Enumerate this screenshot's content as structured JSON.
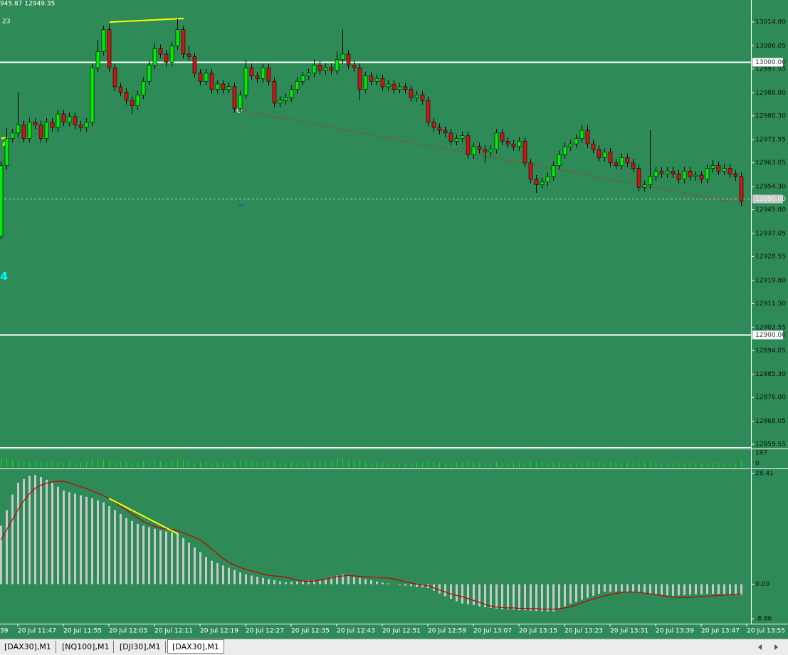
{
  "header": {
    "prices": "945.87 12949.35",
    "label": "23",
    "marker_a": "7",
    "marker_b": "4"
  },
  "chart_data": [
    {
      "type": "candlestick",
      "colors": {
        "up": "#00ee00",
        "down": "#d01414",
        "wick": "#000000"
      },
      "open": [
        12936,
        12962,
        12972,
        12974,
        12977,
        12972,
        12978,
        12977,
        12972,
        12978,
        12976,
        12981,
        12978,
        12980,
        12977,
        12976,
        12978,
        12998,
        13004,
        13012,
        12998,
        12991,
        12989,
        12986,
        12984,
        12988,
        12993,
        12999,
        13005,
        13003,
        13000,
        13006,
        13012,
        13003,
        13002,
        12996,
        12993,
        12996,
        12990,
        12992,
        12990,
        12991,
        12983,
        12988,
        12998,
        12995,
        12994,
        12998,
        12993,
        12985,
        12986,
        12987,
        12990,
        12993,
        12995,
        12996,
        12999,
        12997,
        12998,
        12997,
        13001,
        13003,
        12999,
        12998,
        12990,
        12995,
        12993,
        12994,
        12991,
        12992,
        12990,
        12991,
        12990,
        12987,
        12988,
        12986,
        12978,
        12976,
        12975,
        12974,
        12971,
        12972,
        12973,
        12966,
        12969,
        12968,
        12967,
        12968,
        12974,
        12971,
        12970,
        12969,
        12971,
        12963,
        12957,
        12955,
        12956,
        12958,
        12962,
        12966,
        12969,
        12970,
        12972,
        12975,
        12970,
        12968,
        12965,
        12967,
        12963,
        12962,
        12965,
        12963,
        12961,
        12954,
        12955,
        12958,
        12960,
        12959,
        12960,
        12959,
        12957,
        12960,
        12958,
        12958.5,
        12957,
        12961,
        12962,
        12960,
        12961,
        12959,
        12958
      ],
      "high": [
        12963.5,
        12976,
        12975.5,
        12989,
        12978.5,
        12979.5,
        12979.5,
        12978.5,
        12979.5,
        12979.5,
        12982.5,
        12982.5,
        12981.5,
        12981.5,
        12978.5,
        12979.5,
        12999.5,
        13008,
        13013.5,
        13014,
        12999.5,
        12992.5,
        12990.5,
        12987.5,
        12989.5,
        12994.5,
        13000.5,
        13007,
        13006.5,
        13004.5,
        13007.5,
        13016,
        13013.5,
        13006,
        13003.5,
        12997.5,
        12997.5,
        12997.5,
        12993.5,
        12993.5,
        12992.5,
        12992.5,
        12989.5,
        13001,
        12999.5,
        12996.5,
        12999.5,
        12999.5,
        12994.5,
        12987.5,
        12988.5,
        12991.5,
        12994.5,
        12996.5,
        12997.5,
        13001,
        13000.5,
        12999.5,
        12999.5,
        13004,
        13012,
        13004.5,
        13000.5,
        12999.5,
        12996.5,
        12996.5,
        12995.5,
        12995.5,
        12993.5,
        12993.5,
        12992.5,
        12992.5,
        12991.5,
        12989.5,
        12989.5,
        12987.5,
        12979.5,
        12977.5,
        12976.5,
        12975.5,
        12973.5,
        12974.5,
        12974.5,
        12970.5,
        12970.5,
        12969.5,
        12969.5,
        12975.5,
        12975.5,
        12972.5,
        12971.5,
        12972.5,
        12972.5,
        12964.5,
        12958.5,
        12957.5,
        12959.5,
        12963.5,
        12967.5,
        12970.5,
        12971.5,
        12973.5,
        12977,
        12977,
        12971.5,
        12969.5,
        12968.5,
        12968.5,
        12964.5,
        12966.5,
        12966.5,
        12964.5,
        12962.5,
        12956.5,
        12975,
        12961.5,
        12961.5,
        12961.5,
        12961.5,
        12960.5,
        12961.5,
        12961.5,
        12960,
        12960,
        12962.5,
        12964,
        12963.5,
        12962.5,
        12962.5,
        12960.5,
        12959.5
      ],
      "low": [
        12935,
        12960.5,
        12970.5,
        12972.5,
        12970.5,
        12970.5,
        12975.5,
        12970.5,
        12970.5,
        12974.5,
        12974.5,
        12976.5,
        12976.5,
        12975.5,
        12974.5,
        12974.5,
        12976.5,
        12996.5,
        13002.5,
        12996.5,
        12989.5,
        12987.5,
        12984.5,
        12981,
        12982.5,
        12986.5,
        12991.5,
        12997.5,
        13001.5,
        12998.5,
        12998.5,
        13004.5,
        13001.5,
        13000.5,
        12994.5,
        12991.5,
        12991.5,
        12988.5,
        12988.5,
        12988.5,
        12988.5,
        12981.5,
        12981.5,
        12986.5,
        12993.5,
        12992.5,
        12992.5,
        12991.5,
        12983.5,
        12983.5,
        12984.5,
        12985.5,
        12988.5,
        12991.5,
        12993.5,
        12994.5,
        12995.5,
        12995.5,
        12995.5,
        12995.5,
        12999.5,
        12997.5,
        12996.5,
        12986,
        12988.5,
        12991.5,
        12991.5,
        12989.5,
        12989.5,
        12988.5,
        12988.5,
        12988.5,
        12985.5,
        12985.5,
        12984.5,
        12976.5,
        12974.5,
        12973.5,
        12972.5,
        12969.5,
        12969.5,
        12970.5,
        12964.5,
        12964.5,
        12966.5,
        12963,
        12965.5,
        12966.5,
        12969.5,
        12968.5,
        12967.5,
        12967.5,
        12961.5,
        12955.5,
        12952,
        12953.5,
        12954.5,
        12956.5,
        12960.5,
        12964.5,
        12967.5,
        12968.5,
        12970.5,
        12968.5,
        12966.5,
        12963.5,
        12963.5,
        12961.5,
        12960.5,
        12960.5,
        12961.5,
        12959.5,
        12952.5,
        12952.5,
        12953.5,
        12956.5,
        12957.5,
        12957.5,
        12957.5,
        12955.5,
        12955.5,
        12956.5,
        12956.5,
        12955.5,
        12955.5,
        12959.5,
        12958.5,
        12958.5,
        12957.5,
        12956.5,
        12947
      ],
      "close": [
        12962,
        12972,
        12974,
        12977,
        12972,
        12978,
        12977,
        12972,
        12978,
        12976,
        12981,
        12978,
        12980,
        12977,
        12976,
        12978,
        12998,
        13004,
        13012,
        12998,
        12991,
        12989,
        12986,
        12984,
        12988,
        12993,
        12999,
        13005,
        13003,
        13000,
        13006,
        13012,
        13003,
        13002,
        12996,
        12993,
        12996,
        12990,
        12992,
        12990,
        12991,
        12983,
        12988,
        12998,
        12995,
        12994,
        12998,
        12993,
        12985,
        12986,
        12987,
        12990,
        12993,
        12995,
        12996,
        12999,
        12997,
        12998,
        12997,
        13001,
        13003,
        12999,
        12998,
        12990,
        12995,
        12993,
        12994,
        12991,
        12992,
        12990,
        12991,
        12990,
        12987,
        12988,
        12986,
        12978,
        12976,
        12975,
        12974,
        12971,
        12972,
        12973,
        12966,
        12969,
        12968,
        12967,
        12968,
        12974,
        12971,
        12970,
        12969,
        12971,
        12963,
        12957,
        12955,
        12956,
        12958,
        12962,
        12966,
        12969,
        12970,
        12972,
        12975,
        12970,
        12968,
        12965,
        12967,
        12963,
        12962,
        12965,
        12963,
        12961,
        12954,
        12955,
        12958,
        12960,
        12959,
        12960,
        12959,
        12957,
        12960,
        12958,
        12958.5,
        12957,
        12961,
        12962,
        12960,
        12961,
        12959,
        12958,
        12949
      ],
      "ylim": [
        12858.8,
        13022.9
      ],
      "yticks": [
        {
          "value": 13014.8,
          "label": "13014.80"
        },
        {
          "value": 13006.05,
          "label": "13006.05"
        },
        {
          "value": 12997.55,
          "label": "12997.55"
        },
        {
          "value": 12988.8,
          "label": "12988.80"
        },
        {
          "value": 12980.3,
          "label": "12980.30"
        },
        {
          "value": 12971.55,
          "label": "12971.55"
        },
        {
          "value": 12963.05,
          "label": "12963.05"
        },
        {
          "value": 12954.3,
          "label": "12954.30"
        },
        {
          "value": 12945.8,
          "label": "12945.80"
        },
        {
          "value": 12937.05,
          "label": "12937.05"
        },
        {
          "value": 12928.55,
          "label": "12928.55"
        },
        {
          "value": 12919.8,
          "label": "12919.80"
        },
        {
          "value": 12911.3,
          "label": "12911.30"
        },
        {
          "value": 12902.55,
          "label": "12902.55"
        },
        {
          "value": 12894.05,
          "label": "12894.05"
        },
        {
          "value": 12885.3,
          "label": "12885.30"
        },
        {
          "value": 12876.8,
          "label": "12876.80"
        },
        {
          "value": 12868.05,
          "label": "12868.05"
        },
        {
          "value": 12859.55,
          "label": "12859.55"
        }
      ],
      "levels": [
        {
          "value": 13000,
          "label": "13000.00",
          "color": "#ffffff",
          "dashed": false
        },
        {
          "value": 12950,
          "label": "12950.00",
          "color": "#c8c8c8",
          "dashed": true
        },
        {
          "value": 12900,
          "label": "12900.00",
          "color": "#ffffff",
          "dashed": false
        }
      ]
    },
    {
      "type": "bar",
      "color": "#00ee00",
      "values": [
        120,
        110,
        95,
        80,
        70,
        60,
        75,
        65,
        55,
        70,
        60,
        50,
        65,
        55,
        60,
        70,
        110,
        100,
        90,
        85,
        70,
        60,
        65,
        55,
        60,
        75,
        70,
        80,
        65,
        60,
        70,
        95,
        80,
        70,
        60,
        55,
        65,
        50,
        60,
        55,
        50,
        70,
        65,
        80,
        60,
        55,
        60,
        65,
        75,
        55,
        50,
        60,
        55,
        50,
        65,
        60,
        55,
        70,
        60,
        100,
        120,
        75,
        65,
        80,
        60,
        55,
        50,
        60,
        55,
        50,
        45,
        55,
        50,
        60,
        55,
        80,
        65,
        60,
        55,
        50,
        60,
        55,
        70,
        60,
        50,
        55,
        45,
        60,
        55,
        50,
        45,
        55,
        65,
        70,
        60,
        55,
        50,
        60,
        65,
        60,
        55,
        50,
        60,
        70,
        60,
        55,
        50,
        60,
        55,
        50,
        55,
        50,
        70,
        55,
        90,
        60,
        50,
        45,
        55,
        50,
        45,
        55,
        50,
        45,
        50,
        55,
        50,
        45,
        50,
        45,
        80
      ],
      "ylim": [
        0,
        197
      ],
      "yticks": [
        197,
        0
      ]
    },
    {
      "type": "macd",
      "histogram": {
        "color": "#c8c8c8",
        "values": [
          15,
          19,
          23,
          26,
          27,
          27.8,
          28,
          27.5,
          26.8,
          26,
          25,
          24,
          23.6,
          23.2,
          22.8,
          22.4,
          22,
          21.5,
          21,
          20,
          19,
          18,
          17,
          16.2,
          15.5,
          15,
          14.6,
          14.2,
          13.8,
          13.5,
          13.2,
          13,
          11.8,
          10.6,
          9.4,
          8.2,
          7,
          6,
          5.4,
          4.8,
          4.2,
          3.6,
          3,
          2.5,
          2.2,
          1.9,
          1.6,
          1.3,
          1,
          0.7,
          0.5,
          0.6,
          0.7,
          0.8,
          0.9,
          1,
          1,
          1.4,
          1.8,
          2.2,
          2.5,
          2.2,
          1.9,
          1.6,
          1.3,
          1,
          0.7,
          0.4,
          0.2,
          0,
          -0.2,
          -0.4,
          -0.5,
          -0.7,
          -0.8,
          -1,
          -1.7,
          -2.4,
          -3.1,
          -3.8,
          -4.4,
          -5,
          -5.2,
          -5.4,
          -5.7,
          -5.9,
          -6.1,
          -6.3,
          -6.4,
          -6.5,
          -6.6,
          -6.7,
          -6.7,
          -6.8,
          -6.9,
          -6.9,
          -7,
          -7,
          -6.4,
          -5.7,
          -5,
          -4.5,
          -4,
          -3.5,
          -3,
          -2.5,
          -2,
          -2,
          -1.9,
          -1.9,
          -2,
          -2,
          -2,
          -2.2,
          -2.4,
          -2.6,
          -2.8,
          -2.9,
          -3,
          -2.9,
          -2.8,
          -2.7,
          -2.6,
          -2.6,
          -2.5,
          -2.5,
          -2.5,
          -2.6,
          -2.7,
          -2.8,
          -2.8
        ]
      },
      "signal": {
        "color": "#c00000",
        "values": [
          11.4,
          14,
          16.6,
          19.2,
          21.4,
          23.2,
          24.6,
          25.4,
          25.9,
          26.2,
          26.4,
          26.4,
          26,
          25.5,
          25,
          24.5,
          23.9,
          23.3,
          22.7,
          22,
          21,
          20,
          19,
          18,
          17,
          16,
          15.4,
          14.8,
          14.4,
          14.2,
          14,
          13.8,
          13.2,
          12.6,
          12,
          11.4,
          10.2,
          9,
          7.8,
          6.6,
          5.6,
          4.9,
          4.3,
          3.8,
          3.4,
          3,
          2.6,
          2.3,
          2.1,
          2,
          1.8,
          1.4,
          1,
          0.8,
          0.7,
          0.8,
          1,
          1.3,
          1.6,
          1.9,
          2.1,
          2.2,
          2.1,
          2,
          1.9,
          1.8,
          1.7,
          1.6,
          1.6,
          1.3,
          1,
          0.6,
          0.3,
          0,
          -0.2,
          -0.4,
          -1,
          -1.5,
          -2,
          -2.5,
          -2.9,
          -3.2,
          -3.7,
          -4.2,
          -4.7,
          -5.2,
          -5.6,
          -5.9,
          -6,
          -6.1,
          -6.1,
          -6.2,
          -6.2,
          -6.3,
          -6.3,
          -6.4,
          -6.4,
          -6.4,
          -6.3,
          -6.1,
          -5.8,
          -5.3,
          -4.8,
          -4.3,
          -3.8,
          -3.4,
          -3,
          -2.7,
          -2.4,
          -2.1,
          -2,
          -2,
          -2.1,
          -2.3,
          -2.5,
          -2.7,
          -2.9,
          -3.1,
          -3.3,
          -3.4,
          -3.4,
          -3.4,
          -3.3,
          -3.2,
          -3.1,
          -3,
          -2.9,
          -2.8,
          -2.7,
          -2.6,
          -2.5
        ]
      },
      "ylim": [
        -10.14,
        29.5
      ],
      "yticks": [
        {
          "value": 28.41,
          "label": "28.41"
        },
        {
          "value": 0,
          "label": "0.00"
        },
        {
          "value": -8.86,
          "label": "-8.86"
        }
      ]
    }
  ],
  "x_labels": [
    "39",
    "20 Jul 11:47",
    "20 Jul 11:55",
    "20 Jul 12:03",
    "20 Jul 12:11",
    "20 Jul 12:19",
    "20 Jul 12:27",
    "20 Jul 12:35",
    "20 Jul 12:43",
    "20 Jul 12:51",
    "20 Jul 12:59",
    "20 Jul 13:07",
    "20 Jul 13:15",
    "20 Jul 13:23",
    "20 Jul 13:31",
    "20 Jul 13:39",
    "20 Jul 13:47",
    "20 Jul 13:55"
  ],
  "tabs": [
    "[DAX30],M1",
    "[NQ100],M1",
    "[DJI30],M1",
    "[DAX30],M1"
  ],
  "active_tab": 3
}
